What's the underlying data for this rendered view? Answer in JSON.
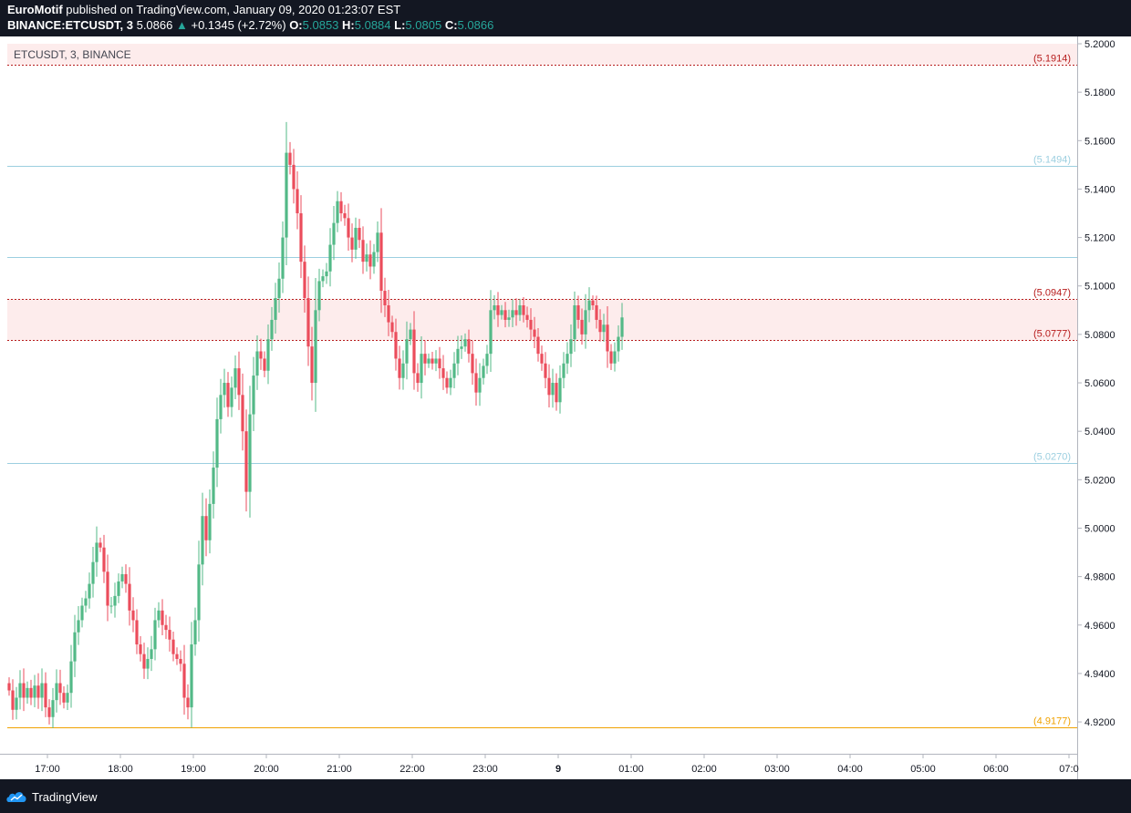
{
  "header": {
    "author": "EuroMotif",
    "published_text": "published on TradingView.com, January 09, 2020 01:23:07 EST",
    "symbol": "BINANCE:ETCUSDT, 3",
    "last_price": "5.0866",
    "change_arrow": "▲",
    "change": "+0.1345 (+2.72%)",
    "o_label": "O:",
    "o_value": "5.0853",
    "h_label": "H:",
    "h_value": "5.0884",
    "l_label": "L:",
    "l_value": "5.0805",
    "c_label": "C:",
    "c_value": "5.0866"
  },
  "chart_data": {
    "type": "candlestick",
    "title": "ETCUSDT, 3, BINANCE",
    "interval_minutes": 3,
    "x_tick_labels": [
      "17:00",
      "18:00",
      "19:00",
      "20:00",
      "21:00",
      "22:00",
      "23:00",
      "9",
      "01:00",
      "02:00",
      "03:00",
      "04:00",
      "05:00",
      "06:00",
      "07:0"
    ],
    "y_tick_labels": [
      "5.2000",
      "5.1800",
      "5.1600",
      "5.1400",
      "5.1200",
      "5.1000",
      "5.0800",
      "5.0600",
      "5.0400",
      "5.0200",
      "5.0000",
      "4.9800",
      "4.9600",
      "4.9400",
      "4.9200"
    ],
    "y_axis": "right",
    "ylim": [
      4.9125,
      5.2
    ],
    "grid": false,
    "levels": [
      {
        "value": 5.1914,
        "label": "(5.1914)",
        "color": "#b71c1c",
        "style": "dotted"
      },
      {
        "value": 5.1494,
        "label": "(5.1494)",
        "color": "#9ccfe0",
        "style": "solid"
      },
      {
        "value": 5.112,
        "label": "",
        "color": "#9ccfe0",
        "style": "solid"
      },
      {
        "value": 5.0947,
        "label": "(5.0947)",
        "color": "#b71c1c",
        "style": "dotted"
      },
      {
        "value": 5.0777,
        "label": "(5.0777)",
        "color": "#b71c1c",
        "style": "dotted"
      },
      {
        "value": 5.027,
        "label": "(5.0270)",
        "color": "#9ccfe0",
        "style": "solid"
      },
      {
        "value": 4.9177,
        "label": "(4.9177)",
        "color": "#f0a202",
        "style": "solid"
      }
    ],
    "zones": [
      {
        "from": 5.1914,
        "to": 5.2,
        "color": "#fdecec"
      },
      {
        "from": 5.0777,
        "to": 5.0947,
        "color": "#fdecec"
      }
    ],
    "close_series": [
      4.933,
      4.925,
      4.93,
      4.936,
      4.93,
      4.934,
      4.93,
      4.935,
      4.93,
      4.936,
      4.926,
      4.922,
      4.929,
      4.936,
      4.932,
      4.928,
      4.932,
      4.945,
      4.957,
      4.962,
      4.968,
      4.971,
      4.977,
      4.986,
      4.994,
      4.992,
      4.982,
      4.968,
      4.968,
      4.972,
      4.978,
      4.981,
      4.977,
      4.966,
      4.962,
      4.952,
      4.948,
      4.942,
      4.946,
      4.95,
      4.962,
      4.966,
      4.96,
      4.958,
      4.954,
      4.948,
      4.946,
      4.944,
      4.93,
      4.926,
      4.952,
      4.962,
      4.985,
      5.005,
      4.995,
      5.01,
      5.025,
      5.045,
      5.055,
      5.06,
      5.05,
      5.058,
      5.066,
      5.055,
      5.04,
      5.015,
      5.047,
      5.063,
      5.073,
      5.07,
      5.065,
      5.078,
      5.086,
      5.095,
      5.103,
      5.12,
      5.155,
      5.15,
      5.14,
      5.13,
      5.11,
      5.095,
      5.075,
      5.06,
      5.09,
      5.102,
      5.104,
      5.106,
      5.117,
      5.126,
      5.135,
      5.13,
      5.128,
      5.12,
      5.115,
      5.124,
      5.119,
      5.11,
      5.113,
      5.108,
      5.114,
      5.122,
      5.098,
      5.092,
      5.085,
      5.081,
      5.07,
      5.062,
      5.068,
      5.078,
      5.082,
      5.064,
      5.06,
      5.072,
      5.068,
      5.07,
      5.068,
      5.07,
      5.066,
      5.062,
      5.058,
      5.062,
      5.068,
      5.074,
      5.075,
      5.078,
      5.072,
      5.064,
      5.056,
      5.062,
      5.067,
      5.072,
      5.09,
      5.092,
      5.088,
      5.09,
      5.086,
      5.087,
      5.09,
      5.088,
      5.092,
      5.088,
      5.086,
      5.082,
      5.079,
      5.072,
      5.068,
      5.062,
      5.055,
      5.06,
      5.052,
      5.062,
      5.068,
      5.072,
      5.078,
      5.092,
      5.086,
      5.08,
      5.09,
      5.094,
      5.092,
      5.086,
      5.081,
      5.084,
      5.073,
      5.068,
      5.073,
      5.079,
      5.087
    ]
  },
  "footer": {
    "brand": "TradingView"
  }
}
